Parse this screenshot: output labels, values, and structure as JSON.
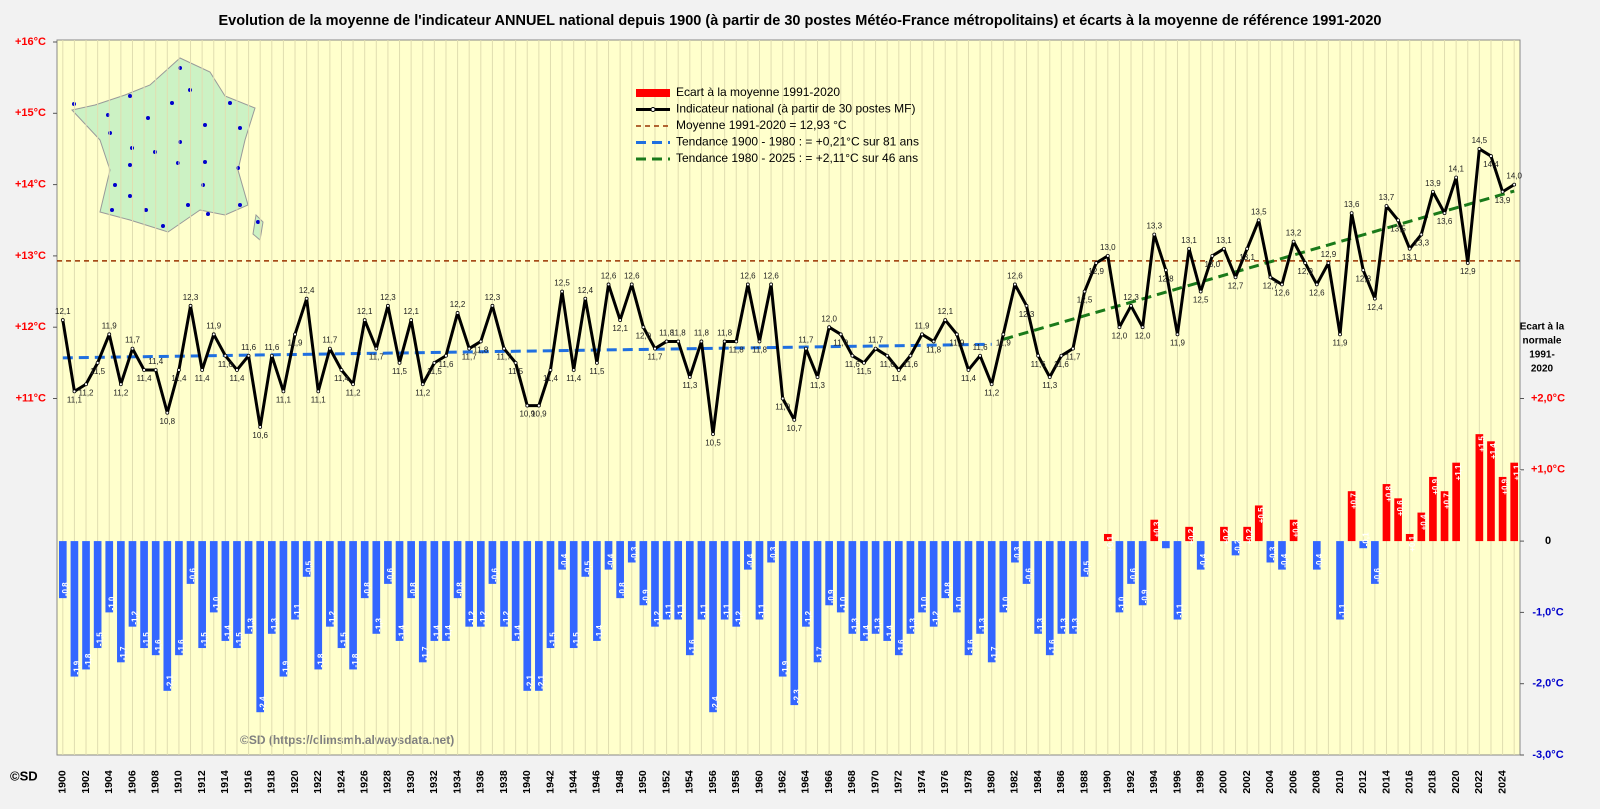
{
  "chart_data": {
    "type": "bar_line",
    "title": "Evolution de la moyenne de l'indicateur ANNUEL national depuis 1900 (à partir de 30 postes Météo-France métropolitains) et écarts à la moyenne de référence 1991-2020",
    "credit": "©SD (https://climsmh.alwaysdata.net)",
    "corner_credit": "©SD",
    "y2_label": [
      "Ecart à la",
      "normale",
      "1991-",
      "2020"
    ],
    "categories": [
      "1900",
      null,
      "1902",
      null,
      "1904",
      null,
      "1906",
      null,
      "1908",
      null,
      "1910",
      null,
      "1912",
      null,
      "1914",
      null,
      "1916",
      null,
      "1918",
      null,
      "1920",
      null,
      "1922",
      null,
      "1924",
      null,
      "1926",
      null,
      "1928",
      null,
      "1930",
      null,
      "1932",
      null,
      "1934",
      null,
      "1936",
      null,
      "1938",
      null,
      "1940",
      null,
      "1942",
      null,
      "1944",
      null,
      "1946",
      null,
      "1948",
      null,
      "1950",
      null,
      "1952",
      null,
      "1954",
      null,
      "1956",
      null,
      "1958",
      null,
      "1960",
      null,
      "1962",
      null,
      "1964",
      null,
      "1966",
      null,
      "1968",
      null,
      "1970",
      null,
      "1972",
      null,
      "1974",
      null,
      "1976",
      null,
      "1978",
      null,
      "1980",
      null,
      "1982",
      null,
      "1984",
      null,
      "1986",
      null,
      "1988",
      null,
      "1990",
      null,
      "1992",
      null,
      "1994",
      null,
      "1996",
      null,
      "1998",
      null,
      "2000",
      null,
      "2002",
      null,
      "2004",
      null,
      "2006",
      null,
      "2008",
      null,
      "2010",
      null,
      "2012",
      null,
      "2014",
      null,
      "2016",
      null,
      "2018",
      null,
      "2020",
      null,
      "2022",
      null,
      "2024",
      null
    ],
    "ylim": [
      6,
      16
    ],
    "yticks": [
      {
        "value": 11,
        "label": "+11°C"
      },
      {
        "value": 12,
        "label": "+12°C"
      },
      {
        "value": 13,
        "label": "+13°C"
      },
      {
        "value": 14,
        "label": "+14°C"
      },
      {
        "value": 15,
        "label": "+15°C"
      },
      {
        "value": 16,
        "label": "+16°C"
      }
    ],
    "y2lim": [
      -3,
      7
    ],
    "y2ticks": [
      {
        "value": -3,
        "label": "-3,0°C"
      },
      {
        "value": -2,
        "label": "-2,0°C"
      },
      {
        "value": -1,
        "label": "-1,0°C"
      },
      0,
      {
        "value": 1,
        "label": "+1,0°C"
      },
      {
        "value": 2,
        "label": "+2,0°C"
      }
    ],
    "grid": true,
    "legend": "upper center",
    "series": [
      {
        "name": "Ecart à la moyenne 1991-2020",
        "type": "bar",
        "axis": "y2",
        "color": "#ff0000",
        "negative_color": "#3366ff",
        "values": [
          -0.8,
          -1.9,
          -1.8,
          -1.5,
          -1.0,
          -1.7,
          -1.2,
          -1.5,
          -1.6,
          -2.1,
          -1.6,
          -0.6,
          -1.5,
          -1.0,
          -1.4,
          -1.5,
          -1.3,
          -2.4,
          -1.3,
          -1.9,
          -1.1,
          -0.5,
          -1.8,
          -1.2,
          -1.5,
          -1.8,
          -0.8,
          -1.3,
          -0.6,
          -1.4,
          -0.8,
          -1.7,
          -1.4,
          -1.4,
          -0.8,
          -1.2,
          -1.2,
          -0.6,
          -1.2,
          -1.4,
          -2.1,
          -2.1,
          -1.5,
          -0.4,
          -1.5,
          -0.5,
          -1.4,
          -0.4,
          -0.8,
          -0.3,
          -0.9,
          -1.2,
          -1.1,
          -1.1,
          -1.6,
          -1.1,
          -2.4,
          -1.1,
          -1.2,
          -0.4,
          -1.1,
          -0.3,
          -1.9,
          -2.3,
          -1.2,
          -1.7,
          -0.9,
          -1.0,
          -1.3,
          -1.4,
          -1.3,
          -1.4,
          -1.6,
          -1.3,
          -1.0,
          -1.2,
          -0.8,
          -1.0,
          -1.6,
          -1.3,
          -1.7,
          -1.0,
          -0.3,
          -0.6,
          -1.3,
          -1.6,
          -1.3,
          -1.3,
          -0.5,
          0.0,
          0.1,
          -1.0,
          -0.6,
          -0.9,
          0.3,
          -0.1,
          -1.1,
          0.2,
          -0.4,
          0.0,
          0.2,
          -0.2,
          0.2,
          0.5,
          -0.3,
          -0.4,
          0.3,
          0.0,
          -0.4,
          0.0,
          -1.1,
          0.7,
          -0.1,
          -0.6,
          0.8,
          0.6,
          0.1,
          0.4,
          0.9,
          0.7,
          1.1,
          0.0,
          1.5,
          1.4,
          0.9,
          1.1
        ],
        "value_labels": [
          "-0,8",
          "-1,9",
          "-1,8",
          "-1,5",
          "-1,0",
          "-1,7",
          "-1,2",
          "-1,5",
          "-1,6",
          "-2,1",
          "-1,6",
          "-0,6",
          "-1,5",
          "-1,0",
          "-1,4",
          "-1,5",
          "-1,3",
          "-2,4",
          "-1,3",
          "-1,9",
          "-1,1",
          "-0,5",
          "-1,8",
          "-1,2",
          "-1,5",
          "-1,8",
          "-0,8",
          "-1,3",
          "-0,6",
          "-1,4",
          "-0,8",
          "-1,7",
          "-1,4",
          "-1,4",
          "-0,8",
          "-1,2",
          "-1,2",
          "-0,6",
          "-1,2",
          "-1,4",
          "-2,1",
          "-2,1",
          "-1,5",
          "-0,4",
          "-1,5",
          "-0,5",
          "-1,4",
          "-0,4",
          "-0,8",
          "-0,3",
          "-0,9",
          "-1,2",
          "-1,1",
          "-1,1",
          "-1,6",
          "-1,1",
          "-2,4",
          "-1,1",
          "-1,2",
          "-0,4",
          "-1,1",
          "-0,3",
          "-1,9",
          "-2,3",
          "-1,2",
          "-1,7",
          "-0,9",
          "-1,0",
          "-1,3",
          "-1,4",
          "-1,3",
          "-1,4",
          "-1,6",
          "-1,3",
          "-1,0",
          "-1,2",
          "-0,8",
          "-1,0",
          "-1,6",
          "-1,3",
          "-1,7",
          "-1,0",
          "-0,3",
          "-0,6",
          "-1,3",
          "-1,6",
          "-1,3",
          "-1,3",
          "-0,5",
          null,
          "+0,1",
          "-1,0",
          "-0,6",
          "-0,9",
          "+0,3",
          null,
          "-1,1",
          "+0,2",
          "-0,4",
          null,
          "+0,2",
          "-0,2",
          "+0,2",
          "+0,5",
          "-0,3",
          "-0,4",
          "+0,3",
          null,
          "-0,4",
          null,
          "-1,1",
          "+0,7",
          "-0,1",
          "-0,6",
          "+0,8",
          "+0,6",
          "+0,1",
          "+0,4",
          "+0,9",
          "+0,7",
          "+1,1",
          null,
          "+1,5",
          "+1,4",
          "+0,9",
          "+1,1"
        ]
      },
      {
        "name": "Indicateur national (à partir de 30 postes MF)",
        "type": "line",
        "color": "#000000",
        "values": [
          12.1,
          11.1,
          11.2,
          11.5,
          11.9,
          11.2,
          11.7,
          11.4,
          11.4,
          10.8,
          11.4,
          12.3,
          11.4,
          11.9,
          11.6,
          11.4,
          11.6,
          10.6,
          11.6,
          11.1,
          11.9,
          12.4,
          11.1,
          11.7,
          11.4,
          11.2,
          12.1,
          11.7,
          12.3,
          11.5,
          12.1,
          11.2,
          11.5,
          11.6,
          12.2,
          11.7,
          11.8,
          12.3,
          11.7,
          11.5,
          10.9,
          10.9,
          11.4,
          12.5,
          11.4,
          12.4,
          11.5,
          12.6,
          12.1,
          12.6,
          12.0,
          11.7,
          11.8,
          11.8,
          11.3,
          11.8,
          10.5,
          11.8,
          11.8,
          12.6,
          11.8,
          12.6,
          11.0,
          10.7,
          11.7,
          11.3,
          12.0,
          11.9,
          11.6,
          11.5,
          11.7,
          11.6,
          11.4,
          11.6,
          11.9,
          11.8,
          12.1,
          11.9,
          11.4,
          11.6,
          11.2,
          11.9,
          12.6,
          12.3,
          11.6,
          11.3,
          11.6,
          11.7,
          12.5,
          12.9,
          13.0,
          12.0,
          12.3,
          12.0,
          13.3,
          12.8,
          11.9,
          13.1,
          12.5,
          13.0,
          13.1,
          12.7,
          13.1,
          13.5,
          12.7,
          12.6,
          13.2,
          12.9,
          12.6,
          12.9,
          11.9,
          13.6,
          12.8,
          12.4,
          13.7,
          13.5,
          13.1,
          13.3,
          13.9,
          13.6,
          14.1,
          12.9,
          14.5,
          14.4,
          13.9,
          14.0
        ],
        "value_labels": [
          "12,1",
          "11,1",
          "11,2",
          "11,5",
          "11,9",
          "11,2",
          "11,7",
          "11,4",
          "11,4",
          "10,8",
          "11,4",
          "12,3",
          "11,4",
          "11,9",
          "11,6",
          "11,4",
          "11,6",
          "10,6",
          "11,6",
          "11,1",
          "11,9",
          "12,4",
          "11,1",
          "11,7",
          "11,4",
          "11,2",
          "12,1",
          "11,7",
          "12,3",
          "11,5",
          "12,1",
          "11,2",
          "11,5",
          "11,6",
          "12,2",
          "11,7",
          "11,8",
          "12,3",
          "11,7",
          "11,5",
          "10,9",
          "10,9",
          "11,4",
          "12,5",
          "11,4",
          "12,4",
          "11,5",
          "12,6",
          "12,1",
          "12,6",
          "12,0",
          "11,7",
          "11,8",
          "11,8",
          "11,3",
          "11,8",
          "10,5",
          "11,8",
          "11,8",
          "12,6",
          "11,8",
          "12,6",
          "11,0",
          "10,7",
          "11,7",
          "11,3",
          "12,0",
          "11,9",
          "11,6",
          "11,5",
          "11,7",
          "11,6",
          "11,4",
          "11,6",
          "11,9",
          "11,8",
          "12,1",
          "11,9",
          "11,4",
          "11,6",
          "11,2",
          "11,9",
          "12,6",
          "12,3",
          "11,6",
          "11,3",
          "11,6",
          "11,7",
          "12,5",
          "12,9",
          "13,0",
          "12,0",
          "12,3",
          "12,0",
          "13,3",
          "12,8",
          "11,9",
          "13,1",
          "12,5",
          "13,0",
          "13,1",
          "12,7",
          "13,1",
          "13,5",
          "12,7",
          "12,6",
          "13,2",
          "12,9",
          "12,6",
          "12,9",
          "11,9",
          "13,6",
          "12,8",
          "12,4",
          "13,7",
          "13,5",
          "13,1",
          "13,3",
          "13,9",
          "13,6",
          "14,1",
          "12,9",
          "14,5",
          "14,4",
          "13,9",
          "14,0"
        ]
      }
    ],
    "reference": {
      "name": "Moyenne 1991-2020 = 12,93 °C",
      "value": 12.93,
      "color": "#993300"
    },
    "trends": [
      {
        "name": "Tendance 1900 - 1980 : = +0,21°C sur 81 ans",
        "color": "#1f6fe0",
        "x": [
          1900,
          1980
        ],
        "values": [
          11.57,
          11.76
        ]
      },
      {
        "name": "Tendance 1980 - 2025 : = +2,11°C sur 46 ans",
        "color": "#1a7a1a",
        "x": [
          1981,
          2025
        ],
        "values": [
          11.83,
          13.91
        ]
      }
    ]
  }
}
